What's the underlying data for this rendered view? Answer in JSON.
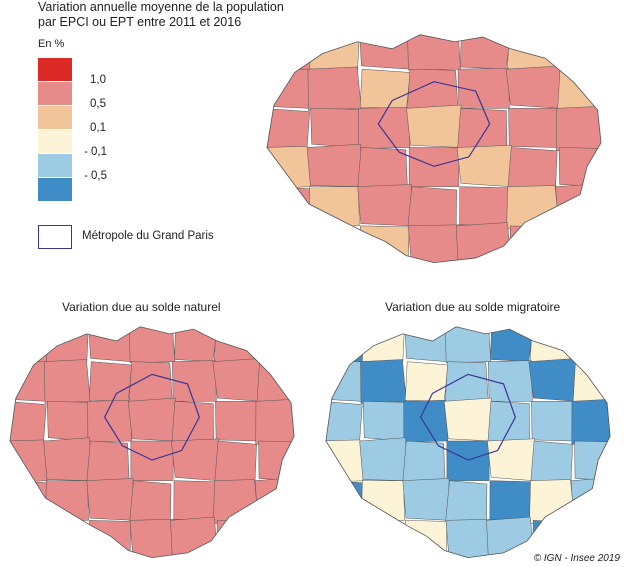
{
  "title_lines": [
    "Variation annuelle moyenne de la population",
    "par EPCI ou EPT entre 2011 et 2016"
  ],
  "legend": {
    "unit": "En %",
    "classes": [
      {
        "color": "#dc2a26"
      },
      {
        "color": "#e78a8a"
      },
      {
        "color": "#f1c49a"
      },
      {
        "color": "#fdf3d6"
      },
      {
        "color": "#9ccbe3"
      },
      {
        "color": "#3f8cc6"
      }
    ],
    "breaks": [
      "1,0",
      "0,5",
      "0,1",
      "- 0,1",
      "- 0,5"
    ],
    "metropole_label": "Métropole du Grand Paris",
    "metropole_color": "#3a3596"
  },
  "maps": [
    {
      "id": "total",
      "title": "",
      "palette": [
        "#e78a8a",
        "#e78a8a",
        "#e78a8a",
        "#f1c49a",
        "#e78a8a",
        "#dc2a26",
        "#fdf3d6",
        "#9ccbe3",
        "#e78a8a",
        "#f1c49a"
      ]
    },
    {
      "id": "naturel",
      "title": "Variation due au solde naturel",
      "palette": [
        "#e78a8a",
        "#f1c49a",
        "#e78a8a",
        "#dc2a26",
        "#e78a8a",
        "#f1c49a",
        "#dc2a26",
        "#e78a8a",
        "#fdf3d6",
        "#e78a8a"
      ]
    },
    {
      "id": "migratoire",
      "title": "Variation due au solde migratoire",
      "palette": [
        "#9ccbe3",
        "#fdf3d6",
        "#f1c49a",
        "#9ccbe3",
        "#3f8cc6",
        "#fdf3d6",
        "#9ccbe3",
        "#e78a8a",
        "#f1c49a",
        "#3f8cc6"
      ]
    }
  ],
  "credit": "© IGN - Insee 2019"
}
